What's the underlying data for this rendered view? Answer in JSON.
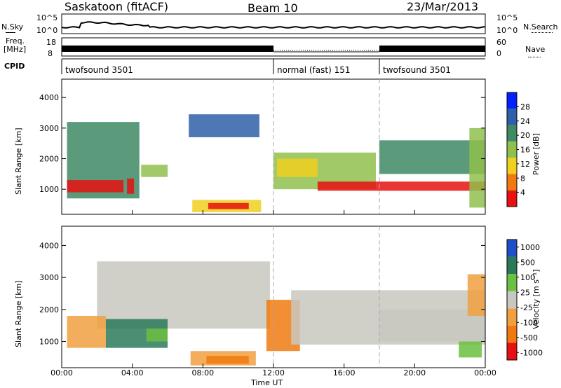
{
  "header": {
    "station": "Saskatoon (fitACF)",
    "beam": "Beam 10",
    "date": "23/Mar/2013"
  },
  "top_panels": {
    "nsky_label": "N.Sky",
    "nsky_ticks": [
      "10^5",
      "10^0"
    ],
    "nsearch_label": "N.Search",
    "nsearch_ticks": [
      "10^5",
      "10^0"
    ],
    "freq_label": "Freq.",
    "freq_unit": "[MHz]",
    "freq_ticks": [
      "18",
      "8"
    ],
    "nave_label": "Nave",
    "nave_ticks": [
      "60",
      "0"
    ],
    "cpid_label": "CPID",
    "cpid_segments": [
      {
        "label": "twofsound 3501",
        "start_hour": 0,
        "end_hour": 12
      },
      {
        "label": "normal (fast) 151",
        "start_hour": 12,
        "end_hour": 18
      },
      {
        "label": "twofsound 3501",
        "start_hour": 18,
        "end_hour": 24
      }
    ]
  },
  "chart_data": [
    {
      "type": "heatmap",
      "title": "Power",
      "ylabel": "Slant Range [km]",
      "ylim": [
        180,
        4600
      ],
      "yticks": [
        "1000",
        "2000",
        "3000",
        "4000"
      ],
      "colorbar_label": "Power [dB]",
      "colorbar_ticks": [
        "4",
        "8",
        "12",
        "16",
        "20",
        "24",
        "28"
      ],
      "colors": [
        "#0022ff",
        "#2f5fa8",
        "#3e8a64",
        "#90c04c",
        "#f0d020",
        "#f07a10",
        "#e81010"
      ],
      "regions": [
        {
          "x0": 0.3,
          "x1": 4.4,
          "y0": 700,
          "y1": 3200,
          "level": 2
        },
        {
          "x0": 0.3,
          "x1": 3.5,
          "y0": 900,
          "y1": 1300,
          "level": 6
        },
        {
          "x0": 3.7,
          "x1": 4.1,
          "y0": 850,
          "y1": 1350,
          "level": 6
        },
        {
          "x0": 4.5,
          "x1": 6.0,
          "y0": 1400,
          "y1": 1800,
          "level": 3
        },
        {
          "x0": 7.2,
          "x1": 11.2,
          "y0": 2700,
          "y1": 3450,
          "level": 1
        },
        {
          "x0": 7.4,
          "x1": 11.3,
          "y0": 250,
          "y1": 650,
          "level": 4
        },
        {
          "x0": 8.3,
          "x1": 10.6,
          "y0": 350,
          "y1": 550,
          "level": 6
        },
        {
          "x0": 12.0,
          "x1": 17.8,
          "y0": 1000,
          "y1": 2200,
          "level": 3
        },
        {
          "x0": 12.2,
          "x1": 14.5,
          "y0": 1400,
          "y1": 2000,
          "level": 4
        },
        {
          "x0": 14.5,
          "x1": 24.0,
          "y0": 950,
          "y1": 1250,
          "level": 6
        },
        {
          "x0": 18.0,
          "x1": 24.0,
          "y0": 1500,
          "y1": 2600,
          "level": 2
        },
        {
          "x0": 23.1,
          "x1": 24.0,
          "y0": 400,
          "y1": 3000,
          "level": 3
        }
      ]
    },
    {
      "type": "heatmap",
      "title": "Velocity",
      "ylabel": "Slant Range [km]",
      "ylim": [
        180,
        4600
      ],
      "yticks": [
        "1000",
        "2000",
        "3000",
        "4000"
      ],
      "colorbar_label": "Velocity [m s⁻¹]",
      "colorbar_ticks": [
        "1000",
        "500",
        "100",
        "25",
        "-25",
        "-100",
        "-500",
        "-1000"
      ],
      "colors": [
        "#1f4fc8",
        "#2a7a5a",
        "#6ac040",
        "#c8c8c0",
        "#f0a040",
        "#f07a10",
        "#e81010"
      ],
      "regions": [
        {
          "x0": 2.0,
          "x1": 11.8,
          "y0": 1400,
          "y1": 3500,
          "level": 3
        },
        {
          "x0": 0.3,
          "x1": 2.5,
          "y0": 800,
          "y1": 1800,
          "level": 4
        },
        {
          "x0": 2.5,
          "x1": 6.0,
          "y0": 800,
          "y1": 1700,
          "level": 1
        },
        {
          "x0": 4.8,
          "x1": 6.0,
          "y0": 1000,
          "y1": 1400,
          "level": 2
        },
        {
          "x0": 7.3,
          "x1": 11.0,
          "y0": 250,
          "y1": 700,
          "level": 4
        },
        {
          "x0": 8.2,
          "x1": 10.6,
          "y0": 300,
          "y1": 550,
          "level": 5
        },
        {
          "x0": 11.6,
          "x1": 13.5,
          "y0": 700,
          "y1": 2300,
          "level": 5
        },
        {
          "x0": 13.0,
          "x1": 24.0,
          "y0": 900,
          "y1": 2600,
          "level": 3
        },
        {
          "x0": 18.0,
          "x1": 24.0,
          "y0": 1000,
          "y1": 2000,
          "level": 3
        },
        {
          "x0": 22.5,
          "x1": 23.8,
          "y0": 500,
          "y1": 1000,
          "level": 2
        },
        {
          "x0": 23.0,
          "x1": 24.0,
          "y0": 1800,
          "y1": 3100,
          "level": 4
        }
      ]
    }
  ],
  "xaxis": {
    "label": "Time UT",
    "ticks": [
      "00:00",
      "04:00",
      "08:00",
      "12:00",
      "16:00",
      "20:00",
      "00:00"
    ]
  }
}
